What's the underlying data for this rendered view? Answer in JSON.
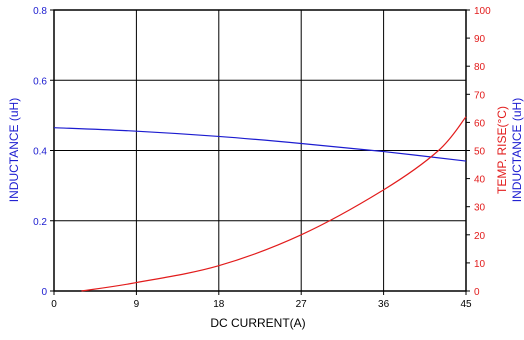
{
  "chart_data": {
    "type": "line",
    "xlabel": "DC CURRENT(A)",
    "x_ticks": [
      0,
      9,
      18,
      27,
      36,
      45
    ],
    "xlim": [
      0,
      45
    ],
    "y_left": {
      "label": "INDUCTANCE (uH)",
      "lim": [
        0,
        0.8
      ],
      "ticks": [
        "0",
        "0.2",
        "0.4",
        "0.6",
        "0.8"
      ]
    },
    "y_right": {
      "label_line1": "TEMP. RISE(°C)",
      "label_line2": "INDUCTANCE (uH)",
      "lim": [
        0,
        100
      ],
      "ticks": [
        "0",
        "10",
        "20",
        "30",
        "40",
        "50",
        "60",
        "70",
        "80",
        "90",
        "100"
      ]
    },
    "grid": true,
    "series": [
      {
        "axis": "left",
        "color": "#1c1cd0",
        "x": [
          0,
          9,
          18,
          27,
          36,
          45
        ],
        "y": [
          0.465,
          0.455,
          0.44,
          0.42,
          0.397,
          0.37
        ]
      },
      {
        "axis": "right",
        "color": "#e21c1c",
        "x": [
          3,
          9,
          18,
          27,
          36,
          42,
          45
        ],
        "y": [
          0,
          3,
          9,
          20,
          36,
          50,
          62
        ]
      }
    ]
  }
}
